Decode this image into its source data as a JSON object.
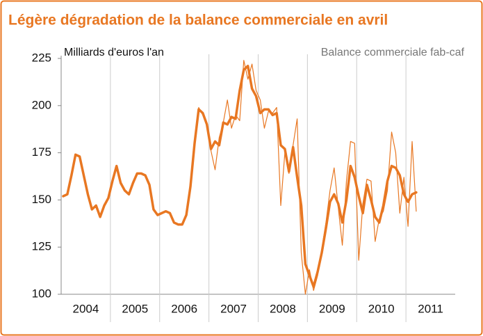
{
  "chart_data": {
    "type": "line",
    "title": "Légère dégradation de la balance commerciale en avril",
    "y_label": "Milliards d'euros l'an",
    "categories": [
      "2004",
      null,
      null,
      null,
      null,
      null,
      null,
      null,
      null,
      null,
      null,
      null,
      "2005",
      null,
      null,
      null,
      null,
      null,
      null,
      null,
      null,
      null,
      null,
      null,
      "2006",
      null,
      null,
      null,
      null,
      null,
      null,
      null,
      null,
      null,
      null,
      null,
      "2007",
      null,
      null,
      null,
      null,
      null,
      null,
      null,
      null,
      null,
      null,
      null,
      "2008",
      null,
      null,
      null,
      null,
      null,
      null,
      null,
      null,
      null,
      null,
      null,
      "2009",
      null,
      null,
      null,
      null,
      null,
      null,
      null,
      null,
      null,
      null,
      null,
      "2010",
      null,
      null,
      null,
      null,
      null,
      null,
      null,
      null,
      null,
      null,
      null,
      "2011",
      null,
      null,
      null,
      null,
      null,
      null,
      null,
      null,
      null,
      null,
      null
    ],
    "series": [
      {
        "name": "Balance commerciale fab-caf",
        "color": "#e87722",
        "values": [
          152,
          153,
          163,
          174,
          173,
          163,
          153,
          145,
          147,
          141,
          147,
          151,
          160,
          168,
          159,
          155,
          153,
          159,
          164,
          164,
          163,
          158,
          145,
          142,
          143,
          144,
          143,
          138,
          137,
          137,
          142,
          157,
          180,
          199,
          195,
          190,
          176,
          166,
          183,
          191,
          203,
          188,
          195,
          192,
          224,
          214,
          222,
          208,
          203,
          188,
          197,
          196,
          199,
          147,
          175,
          164,
          179,
          193,
          122,
          100,
          113,
          102,
          110,
          124,
          138,
          155,
          167,
          146,
          126,
          160,
          181,
          180,
          118,
          148,
          161,
          160,
          128,
          140,
          144,
          155,
          186,
          175,
          143,
          162,
          136,
          181,
          144,
          null,
          null,
          null,
          null,
          null,
          null,
          null,
          null,
          null
        ]
      },
      {
        "color": "#e87722",
        "values": [
          152,
          153,
          163,
          174,
          173,
          163,
          153,
          145,
          147,
          141,
          147,
          151,
          160,
          168,
          159,
          155,
          153,
          159,
          164,
          164,
          163,
          158,
          145,
          142,
          143,
          144,
          143,
          138,
          137,
          137,
          142,
          157,
          180,
          198,
          196,
          190,
          177,
          181,
          179,
          191,
          190,
          194,
          193,
          208,
          219,
          221,
          209,
          205,
          196,
          198,
          198,
          195,
          196,
          179,
          177,
          165,
          178,
          162,
          147,
          116,
          110,
          104,
          112,
          122,
          135,
          149,
          153,
          148,
          138,
          150,
          168,
          162,
          152,
          143,
          158,
          150,
          141,
          138,
          147,
          160,
          168,
          167,
          163,
          153,
          149,
          153,
          154,
          null,
          null,
          null,
          null,
          null,
          null,
          null,
          null,
          null
        ]
      }
    ],
    "ylim": [
      100,
      225
    ],
    "yticks": [
      100,
      125,
      150,
      175,
      200,
      225
    ]
  }
}
